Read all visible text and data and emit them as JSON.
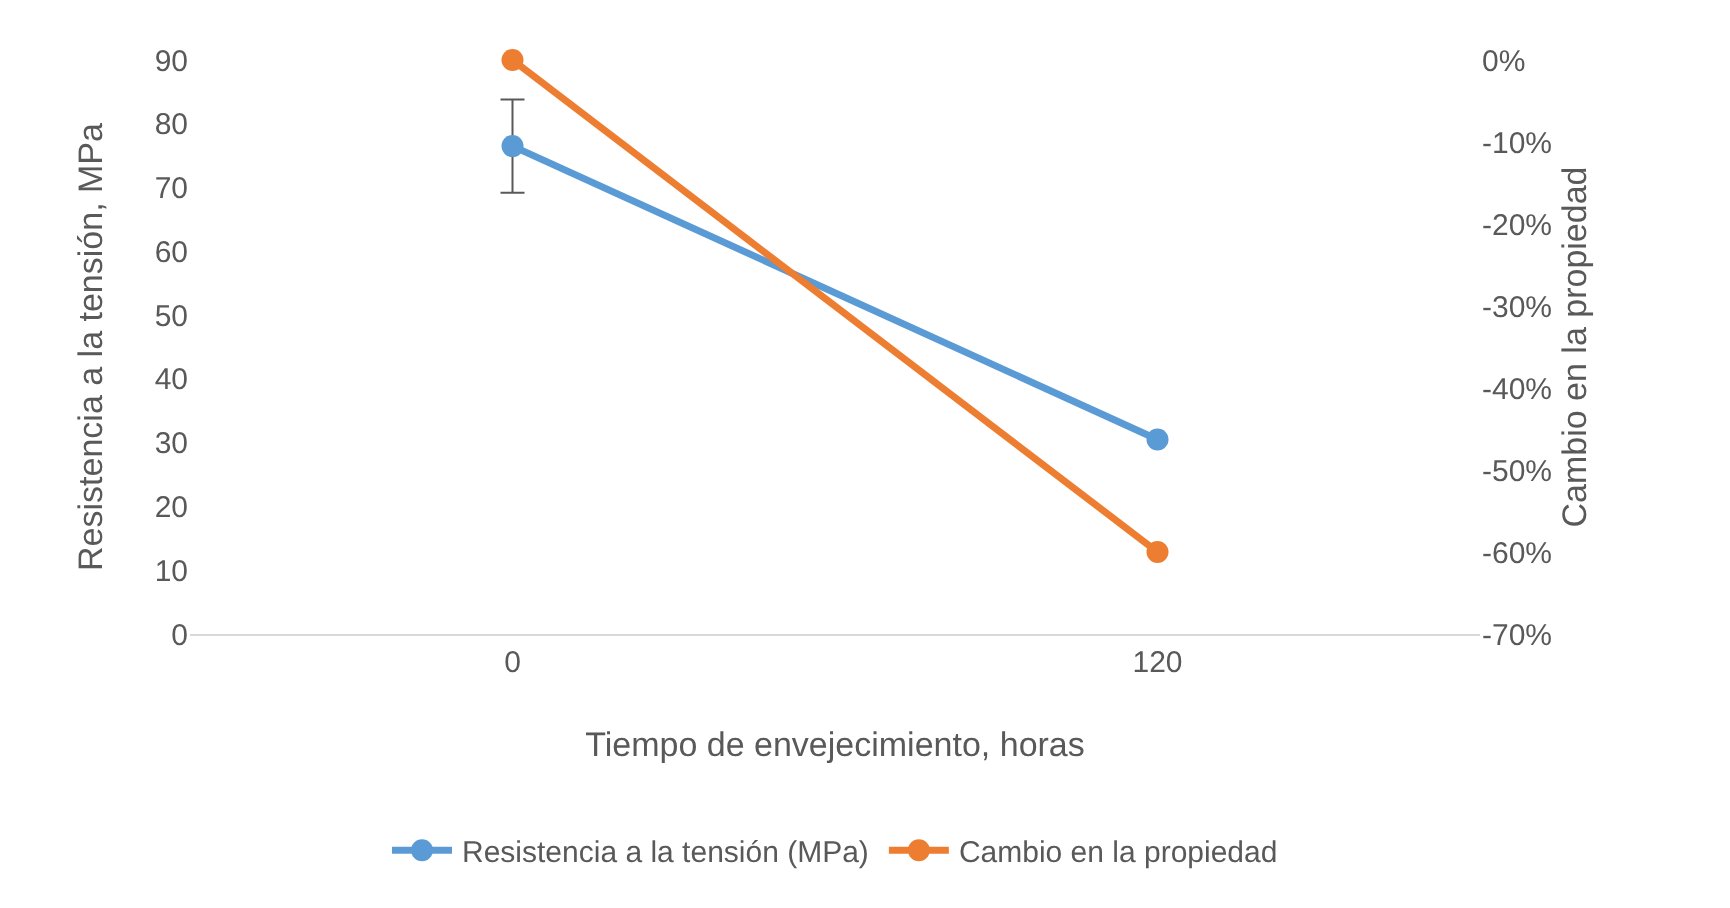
{
  "chart_data": {
    "type": "line",
    "xlabel": "Tiempo de envejecimiento, horas",
    "ylabel": "Resistencia a la tensión, MPa",
    "y2label": "Cambio en la propiedad",
    "categories": [
      "0",
      "120"
    ],
    "series": [
      {
        "name": "Resistencia a la tensión (MPa)",
        "color": "#5b9bd5",
        "values": [
          76.5,
          30.5
        ],
        "errors": [
          7.3,
          null
        ]
      },
      {
        "name": "Cambio en la propiedad",
        "color": "#ed7d31",
        "values": [
          0,
          -60
        ],
        "axis": "y2"
      }
    ],
    "ylim": [
      0,
      90
    ],
    "yticks": [
      0,
      10,
      20,
      30,
      40,
      50,
      60,
      70,
      80,
      90
    ],
    "y2lim": [
      -70,
      0
    ],
    "y2ticks": [
      {
        "value": -70,
        "label": "-70%"
      },
      {
        "value": -60,
        "label": "-60%"
      },
      {
        "value": -50,
        "label": "-50%"
      },
      {
        "value": -40,
        "label": "-40%"
      },
      {
        "value": -30,
        "label": "-30%"
      },
      {
        "value": -20,
        "label": "-20%"
      },
      {
        "value": -10,
        "label": "-10%"
      },
      {
        "value": 0,
        "label": "0%"
      }
    ],
    "legend": "bottom",
    "marker": "circle",
    "line_style": "solid",
    "grid": false
  }
}
